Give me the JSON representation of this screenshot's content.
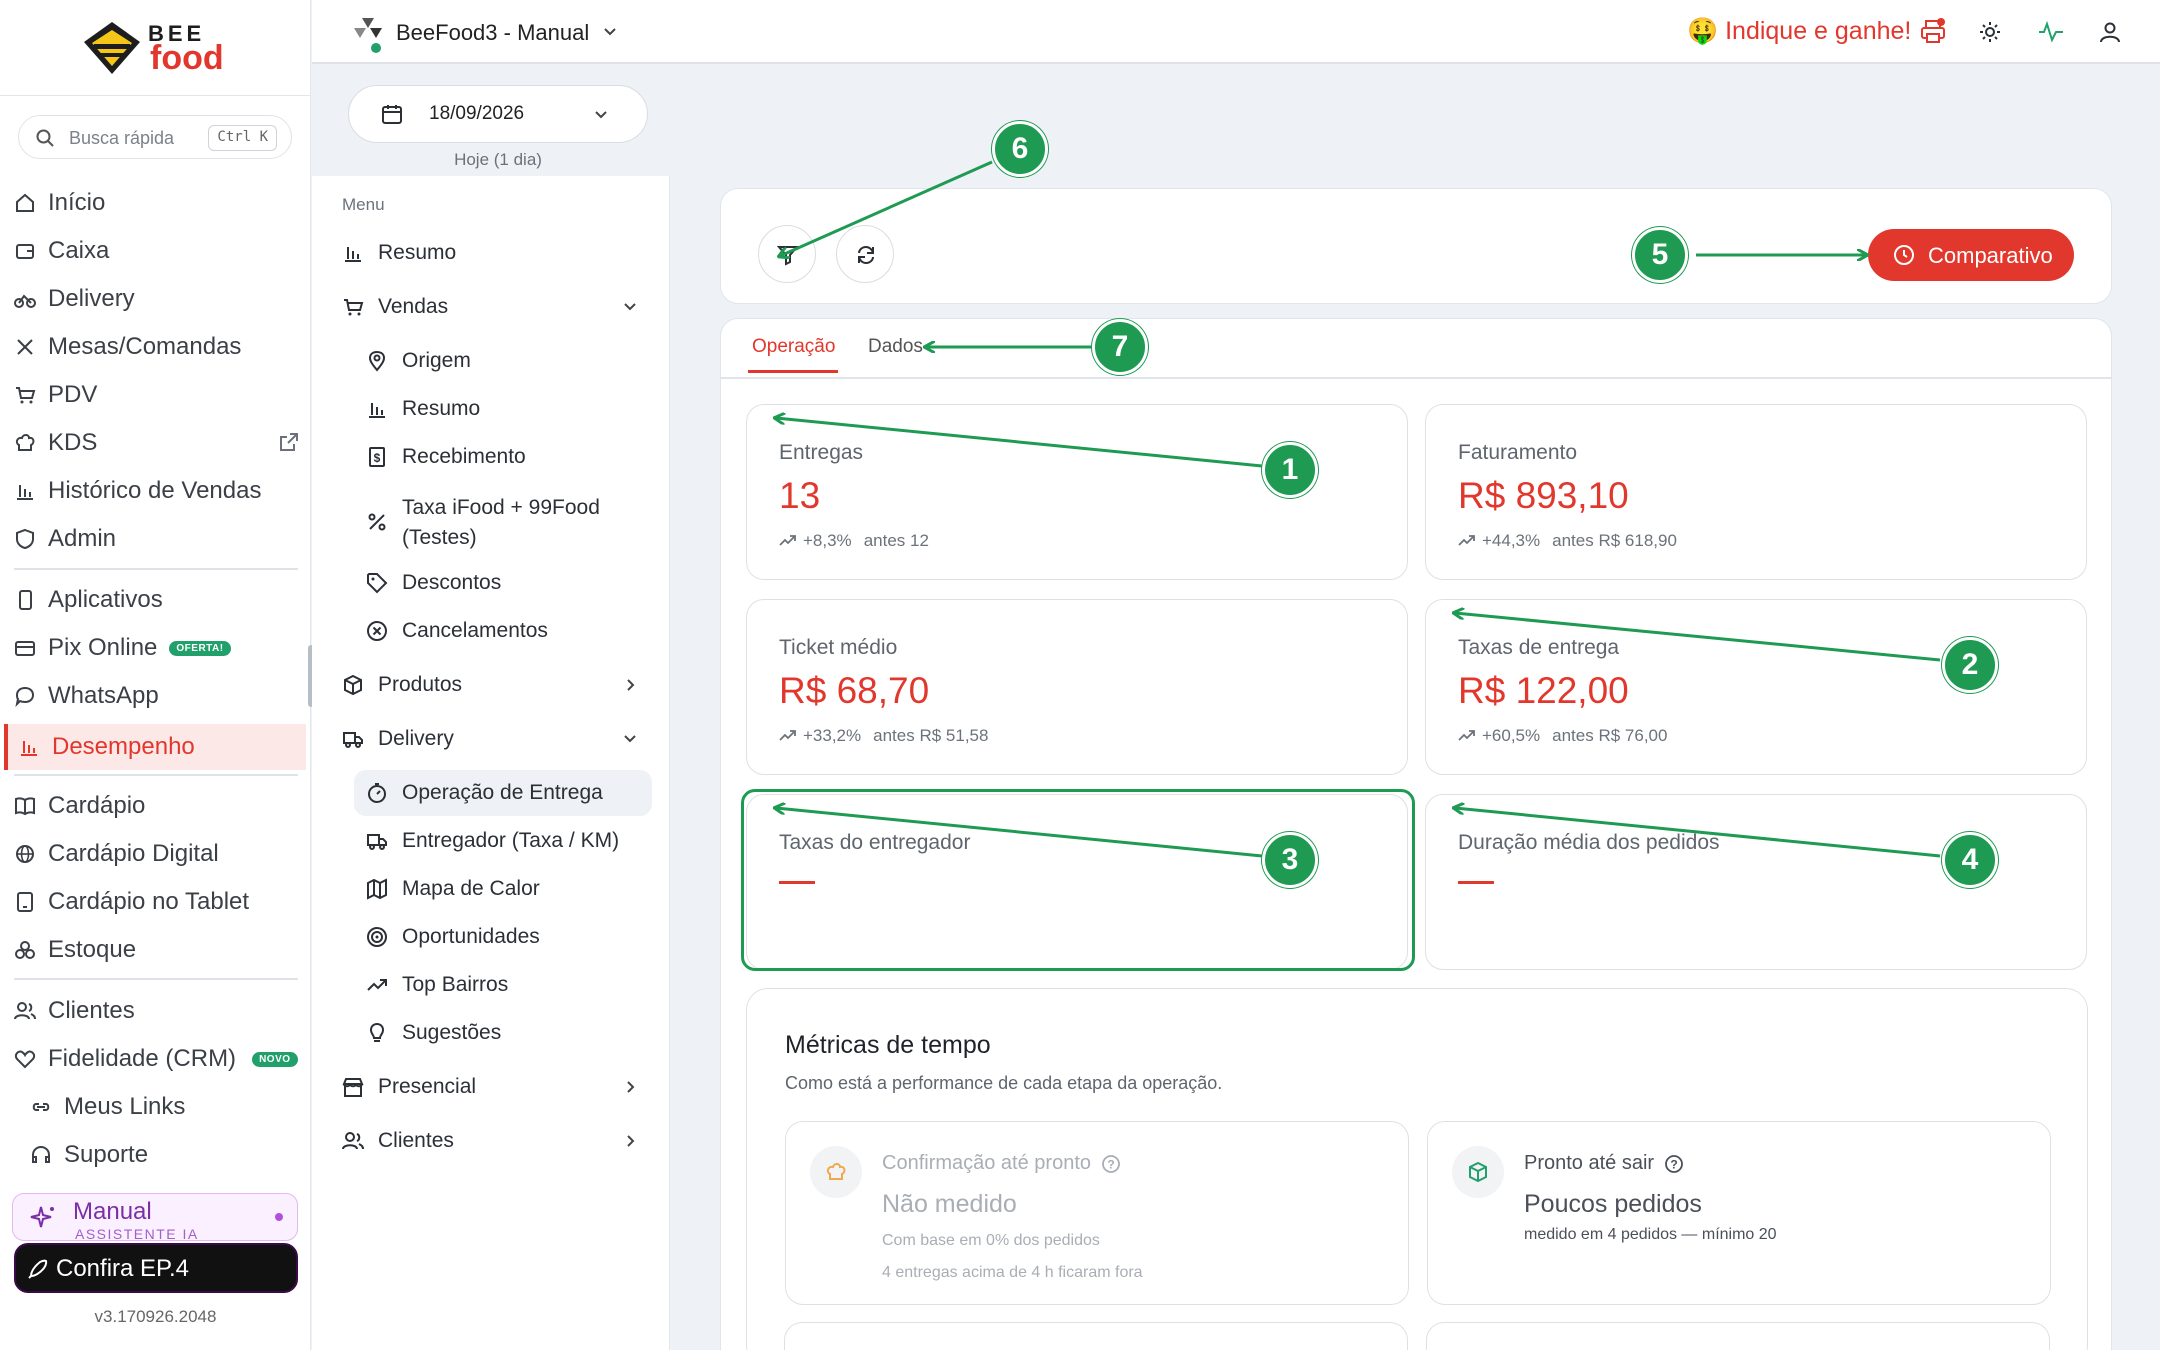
{
  "sidebar": {
    "brand_top": "BEE",
    "brand_bottom": "food",
    "search_placeholder": "Busca rápida",
    "search_shortcut": "Ctrl K",
    "items": [
      {
        "label": "Início",
        "icon": "home-icon"
      },
      {
        "label": "Caixa",
        "icon": "wallet-icon"
      },
      {
        "label": "Delivery",
        "icon": "bike-icon"
      },
      {
        "label": "Mesas/Comandas",
        "icon": "utensils-icon"
      },
      {
        "label": "PDV",
        "icon": "cart-icon"
      },
      {
        "label": "KDS",
        "icon": "chef-hat-icon"
      },
      {
        "label": "Histórico de Vendas",
        "icon": "bar-chart-icon"
      },
      {
        "label": "Admin",
        "icon": "shield-icon"
      },
      {
        "label": "Aplicativos",
        "icon": "smartphone-icon"
      },
      {
        "label": "Pix Online",
        "icon": "credit-card-icon",
        "badge": "OFERTA!"
      },
      {
        "label": "WhatsApp",
        "icon": "chat-icon"
      },
      {
        "label": "Desempenho",
        "icon": "bar-chart-icon"
      },
      {
        "label": "Cardápio",
        "icon": "book-icon"
      },
      {
        "label": "Cardápio Digital",
        "icon": "globe-icon"
      },
      {
        "label": "Cardápio no Tablet",
        "icon": "tablet-icon"
      },
      {
        "label": "Estoque",
        "icon": "boxes-icon"
      },
      {
        "label": "Clientes",
        "icon": "users-icon"
      },
      {
        "label": "Fidelidade (CRM)",
        "icon": "heart-icon",
        "badge": "NOVO"
      },
      {
        "label": "Meus Links",
        "icon": "link-icon"
      },
      {
        "label": "Suporte",
        "icon": "headset-icon"
      }
    ],
    "assistant": {
      "title": "Manual",
      "subtitle": "ASSISTENTE IA"
    },
    "promo": "Confira EP.4",
    "version": "v3.170926.2048"
  },
  "header": {
    "store_name": "BeeFood3 - Manual",
    "referral": "Indique e ganhe!",
    "referral_emoji": "🤑",
    "icons": [
      "printer-icon",
      "sun-icon",
      "activity-icon",
      "user-icon"
    ],
    "accent": "#e2372c"
  },
  "date_filter": {
    "value": "18/09/2026",
    "caption": "Hoje (1 dia)"
  },
  "submenu": {
    "title": "Menu",
    "items": [
      {
        "label": "Resumo"
      },
      {
        "label": "Vendas"
      },
      {
        "label": "Origem"
      },
      {
        "label": "Resumo"
      },
      {
        "label": "Recebimento"
      },
      {
        "label": "Taxa iFood + 99Food",
        "label2": "(Testes)"
      },
      {
        "label": "Descontos"
      },
      {
        "label": "Cancelamentos"
      },
      {
        "label": "Produtos"
      },
      {
        "label": "Delivery"
      },
      {
        "label": "Operação de Entrega"
      },
      {
        "label": "Entregador (Taxa / KM)"
      },
      {
        "label": "Mapa de Calor"
      },
      {
        "label": "Oportunidades"
      },
      {
        "label": "Top Bairros"
      },
      {
        "label": "Sugestões"
      },
      {
        "label": "Presencial"
      },
      {
        "label": "Clientes"
      }
    ]
  },
  "toolbar": {
    "compare_label": "Comparativo"
  },
  "tabs": [
    {
      "label": "Operação",
      "active": true
    },
    {
      "label": "Dados",
      "active": false
    }
  ],
  "kpis": [
    {
      "label": "Entregas",
      "value": "13",
      "change": "+8,3%",
      "before": "antes 12"
    },
    {
      "label": "Faturamento",
      "value": "R$ 893,10",
      "change": "+44,3%",
      "before": "antes R$ 618,90"
    },
    {
      "label": "Ticket médio",
      "value": "R$ 68,70",
      "change": "+33,2%",
      "before": "antes R$ 51,58"
    },
    {
      "label": "Taxas de entrega",
      "value": "R$ 122,00",
      "change": "+60,5%",
      "before": "antes R$ 76,00"
    },
    {
      "label": "Taxas do entregador",
      "value": ""
    },
    {
      "label": "Duração média dos pedidos",
      "value": ""
    }
  ],
  "metrics": {
    "title": "Métricas de tempo",
    "subtitle": "Como está a performance de cada etapa da operação.",
    "cards": [
      {
        "title": "Confirmação até pronto",
        "value": "Não medido",
        "note1": "Com base em 0% dos pedidos",
        "note2": "4 entregas acima de 4 h ficaram fora"
      },
      {
        "title": "Pronto até sair",
        "value": "Poucos pedidos",
        "note1": "medido em 4 pedidos — mínimo 20"
      }
    ]
  },
  "annotations": [
    "1",
    "2",
    "3",
    "4",
    "5",
    "6",
    "7"
  ],
  "colors": {
    "accent": "#e2372c",
    "annotation": "#1e9a52",
    "positive": "#22a06b"
  }
}
